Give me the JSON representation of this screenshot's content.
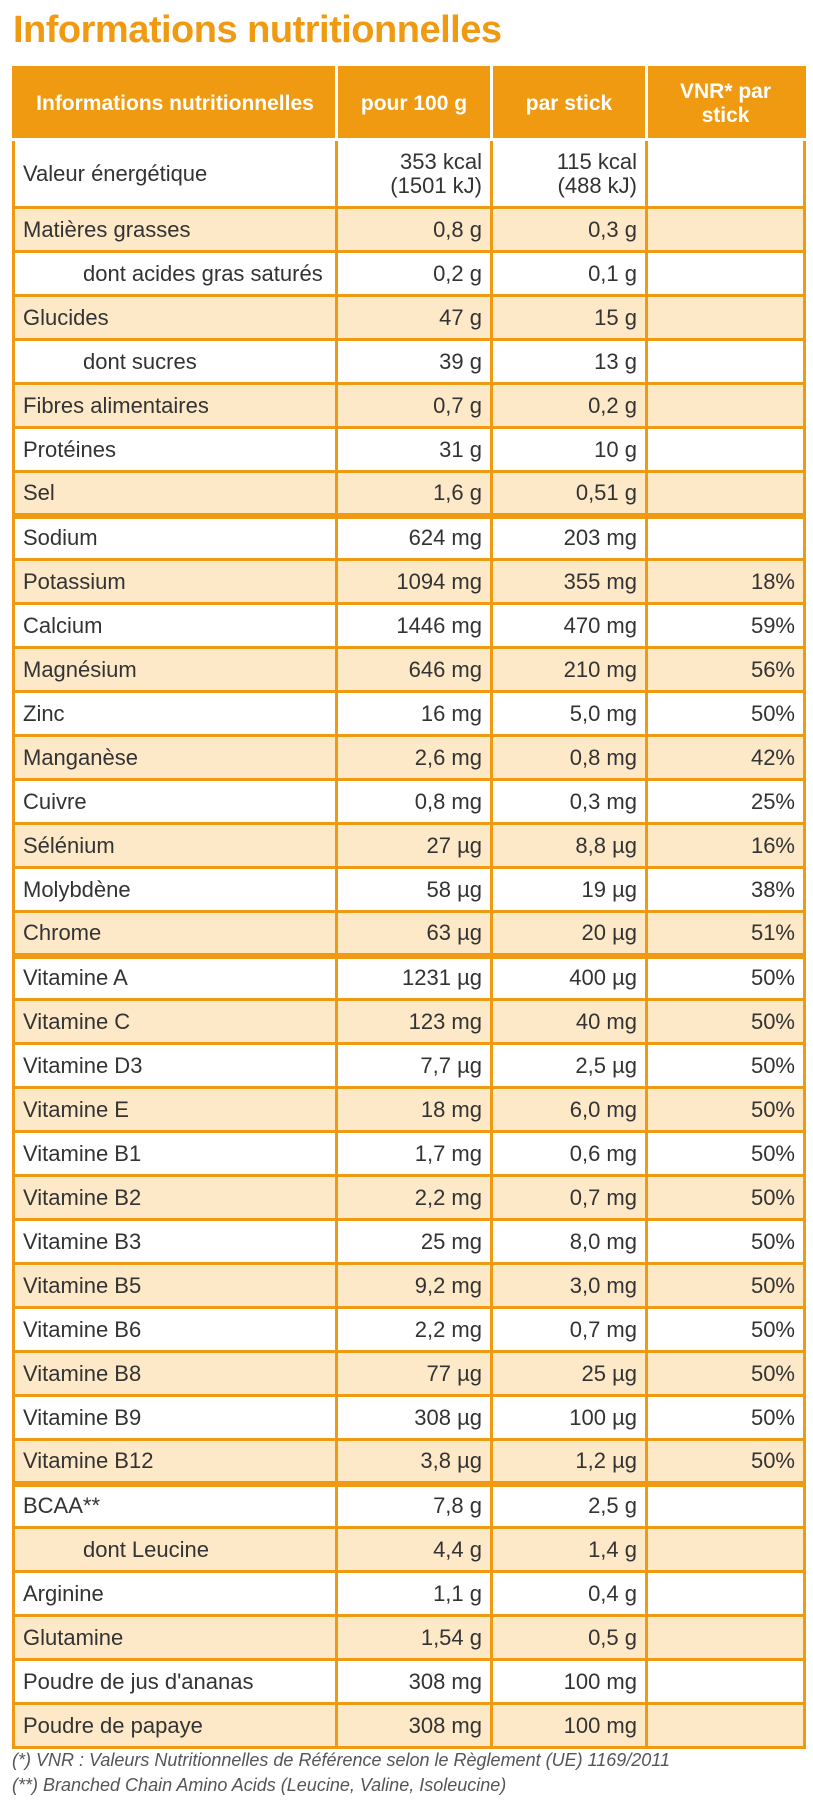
{
  "title": "Informations nutritionnelles",
  "table": {
    "headers": [
      "Informations nutritionnelles",
      "pour 100 g",
      "par stick",
      "VNR* par stick"
    ],
    "rows": [
      {
        "name": "Valeur énergétique",
        "per100": "353 kcal\n(1501 kJ)",
        "perStick": "115 kcal\n(488 kJ)",
        "vnr": "",
        "shade": false,
        "indent": false
      },
      {
        "name": "Matières grasses",
        "per100": "0,8 g",
        "perStick": "0,3 g",
        "vnr": "",
        "shade": true,
        "indent": false
      },
      {
        "name": "dont acides gras saturés",
        "per100": "0,2 g",
        "perStick": "0,1 g",
        "vnr": "",
        "shade": false,
        "indent": true
      },
      {
        "name": "Glucides",
        "per100": "47 g",
        "perStick": "15 g",
        "vnr": "",
        "shade": true,
        "indent": false
      },
      {
        "name": "dont sucres",
        "per100": "39 g",
        "perStick": "13 g",
        "vnr": "",
        "shade": false,
        "indent": true
      },
      {
        "name": "Fibres alimentaires",
        "per100": "0,7 g",
        "perStick": "0,2 g",
        "vnr": "",
        "shade": true,
        "indent": false
      },
      {
        "name": "Protéines",
        "per100": "31 g",
        "perStick": "10 g",
        "vnr": "",
        "shade": false,
        "indent": false
      },
      {
        "name": "Sel",
        "per100": "1,6 g",
        "perStick": "0,51 g",
        "vnr": "",
        "shade": true,
        "indent": false
      },
      {
        "name": "Sodium",
        "per100": "624 mg",
        "perStick": "203 mg",
        "vnr": "",
        "shade": false,
        "indent": false,
        "sectionStart": true
      },
      {
        "name": "Potassium",
        "per100": "1094 mg",
        "perStick": "355 mg",
        "vnr": "18%",
        "shade": true,
        "indent": false
      },
      {
        "name": "Calcium",
        "per100": "1446 mg",
        "perStick": "470 mg",
        "vnr": "59%",
        "shade": false,
        "indent": false
      },
      {
        "name": "Magnésium",
        "per100": "646 mg",
        "perStick": "210 mg",
        "vnr": "56%",
        "shade": true,
        "indent": false
      },
      {
        "name": "Zinc",
        "per100": "16 mg",
        "perStick": "5,0 mg",
        "vnr": "50%",
        "shade": false,
        "indent": false
      },
      {
        "name": "Manganèse",
        "per100": "2,6 mg",
        "perStick": "0,8 mg",
        "vnr": "42%",
        "shade": true,
        "indent": false
      },
      {
        "name": "Cuivre",
        "per100": "0,8 mg",
        "perStick": "0,3 mg",
        "vnr": "25%",
        "shade": false,
        "indent": false
      },
      {
        "name": "Sélénium",
        "per100": "27 µg",
        "perStick": "8,8 µg",
        "vnr": "16%",
        "shade": true,
        "indent": false
      },
      {
        "name": "Molybdène",
        "per100": "58 µg",
        "perStick": "19 µg",
        "vnr": "38%",
        "shade": false,
        "indent": false
      },
      {
        "name": "Chrome",
        "per100": "63 µg",
        "perStick": "20 µg",
        "vnr": "51%",
        "shade": true,
        "indent": false
      },
      {
        "name": "Vitamine A",
        "per100": "1231 µg",
        "perStick": "400 µg",
        "vnr": "50%",
        "shade": false,
        "indent": false,
        "sectionStart": true
      },
      {
        "name": "Vitamine C",
        "per100": "123 mg",
        "perStick": "40 mg",
        "vnr": "50%",
        "shade": true,
        "indent": false
      },
      {
        "name": "Vitamine D3",
        "per100": "7,7 µg",
        "perStick": "2,5 µg",
        "vnr": "50%",
        "shade": false,
        "indent": false
      },
      {
        "name": "Vitamine E",
        "per100": "18 mg",
        "perStick": "6,0 mg",
        "vnr": "50%",
        "shade": true,
        "indent": false
      },
      {
        "name": "Vitamine B1",
        "per100": "1,7 mg",
        "perStick": "0,6 mg",
        "vnr": "50%",
        "shade": false,
        "indent": false
      },
      {
        "name": "Vitamine B2",
        "per100": "2,2 mg",
        "perStick": "0,7 mg",
        "vnr": "50%",
        "shade": true,
        "indent": false
      },
      {
        "name": "Vitamine B3",
        "per100": "25 mg",
        "perStick": "8,0 mg",
        "vnr": "50%",
        "shade": false,
        "indent": false
      },
      {
        "name": "Vitamine B5",
        "per100": "9,2 mg",
        "perStick": "3,0 mg",
        "vnr": "50%",
        "shade": true,
        "indent": false
      },
      {
        "name": "Vitamine B6",
        "per100": "2,2 mg",
        "perStick": "0,7 mg",
        "vnr": "50%",
        "shade": false,
        "indent": false
      },
      {
        "name": "Vitamine B8",
        "per100": "77 µg",
        "perStick": "25 µg",
        "vnr": "50%",
        "shade": true,
        "indent": false
      },
      {
        "name": "Vitamine B9",
        "per100": "308 µg",
        "perStick": "100 µg",
        "vnr": "50%",
        "shade": false,
        "indent": false
      },
      {
        "name": "Vitamine B12",
        "per100": "3,8 µg",
        "perStick": "1,2 µg",
        "vnr": "50%",
        "shade": true,
        "indent": false
      },
      {
        "name": "BCAA**",
        "per100": "7,8 g",
        "perStick": "2,5 g",
        "vnr": "",
        "shade": false,
        "indent": false,
        "sectionStart": true
      },
      {
        "name": "dont Leucine",
        "per100": "4,4 g",
        "perStick": "1,4 g",
        "vnr": "",
        "shade": true,
        "indent": true
      },
      {
        "name": "Arginine",
        "per100": "1,1 g",
        "perStick": "0,4 g",
        "vnr": "",
        "shade": false,
        "indent": false
      },
      {
        "name": "Glutamine",
        "per100": "1,54 g",
        "perStick": "0,5 g",
        "vnr": "",
        "shade": true,
        "indent": false
      },
      {
        "name": "Poudre de jus d'ananas",
        "per100": "308 mg",
        "perStick": "100 mg",
        "vnr": "",
        "shade": false,
        "indent": false
      },
      {
        "name": "Poudre de papaye",
        "per100": "308 mg",
        "perStick": "100 mg",
        "vnr": "",
        "shade": true,
        "indent": false
      }
    ]
  },
  "footnotes": [
    "(*) VNR : Valeurs Nutritionnelles de Référence selon le Règlement (UE) 1169/2011",
    "(**) Branched Chain Amino Acids (Leucine, Valine, Isoleucine)"
  ],
  "colors": {
    "accent": "#ef9a10",
    "rowShade": "#fde8c8"
  }
}
